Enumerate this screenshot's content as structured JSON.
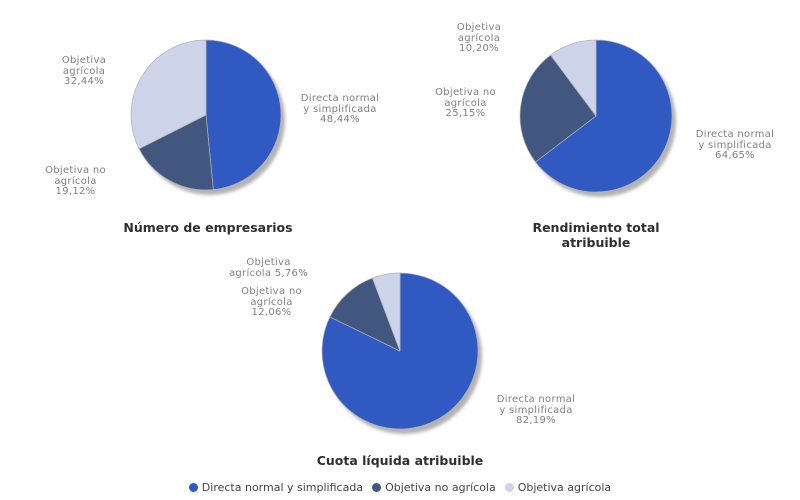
{
  "series": [
    {
      "name": "Directa normal y simplificada",
      "color": "#3159c2"
    },
    {
      "name": "Objetiva no agrícola",
      "color": "#41577f"
    },
    {
      "name": "Objetiva agrícola",
      "color": "#cdd3e8"
    }
  ],
  "chart_data": [
    {
      "type": "pie",
      "title": "Número de empresarios",
      "categories": [
        "Directa normal y simplificada",
        "Objetiva no agrícola",
        "Objetiva agrícola"
      ],
      "values": [
        48.44,
        19.12,
        32.44
      ],
      "display_values": [
        "48,44%",
        "19,12%",
        "32,44%"
      ],
      "slice_colors": [
        "#3159c2",
        "#41577f",
        "#cdd3e8"
      ],
      "start_angle_deg": 0,
      "direction": "clockwise",
      "labels": [
        {
          "lines": [
            "Directa normal",
            "y simplificada",
            "48,44%"
          ]
        },
        {
          "lines": [
            "Objetiva no",
            "agrícola",
            "19,12%"
          ]
        },
        {
          "lines": [
            "Objetiva",
            "agrícola",
            "32,44%"
          ]
        }
      ]
    },
    {
      "type": "pie",
      "title": "Rendimiento total atribuible",
      "categories": [
        "Directa normal y simplificada",
        "Objetiva no agrícola",
        "Objetiva agrícola"
      ],
      "values": [
        64.65,
        25.15,
        10.2
      ],
      "display_values": [
        "64,65%",
        "25,15%",
        "10,20%"
      ],
      "slice_colors": [
        "#3159c2",
        "#41577f",
        "#cdd3e8"
      ],
      "start_angle_deg": 0,
      "direction": "clockwise",
      "labels": [
        {
          "lines": [
            "Directa normal",
            "y simplificada",
            "64,65%"
          ]
        },
        {
          "lines": [
            "Objetiva no",
            "agrícola",
            "25,15%"
          ]
        },
        {
          "lines": [
            "Objetiva",
            "agrícola",
            "10,20%"
          ]
        }
      ]
    },
    {
      "type": "pie",
      "title": "Cuota líquida atribuible",
      "categories": [
        "Directa normal y simplificada",
        "Objetiva no agrícola",
        "Objetiva agrícola"
      ],
      "values": [
        82.19,
        12.06,
        5.76
      ],
      "display_values": [
        "82,19%",
        "12,06%",
        "5,76%"
      ],
      "slice_colors": [
        "#3159c2",
        "#41577f",
        "#cdd3e8"
      ],
      "start_angle_deg": 0,
      "direction": "clockwise",
      "labels": [
        {
          "lines": [
            "Directa normal",
            "y simplificada",
            "82,19%"
          ]
        },
        {
          "lines": [
            "Objetiva no",
            "agrícola",
            "12,06%"
          ]
        },
        {
          "lines": [
            "Objetiva",
            "agrícola 5,76%"
          ]
        }
      ]
    }
  ],
  "legend": {
    "items": [
      {
        "label": "Directa normal y simplificada",
        "color": "#3159c2"
      },
      {
        "label": "Objetiva no agrícola",
        "color": "#41577f"
      },
      {
        "label": "Objetiva agrícola",
        "color": "#cdd3e8"
      }
    ]
  },
  "style_colors": {
    "background": "#ffffff",
    "label_text": "#7f7f7f",
    "title_text": "#2f2f2f",
    "legend_text": "#444444",
    "shadow": "#8a8a8a",
    "slice_border": "#b3b3b3"
  }
}
